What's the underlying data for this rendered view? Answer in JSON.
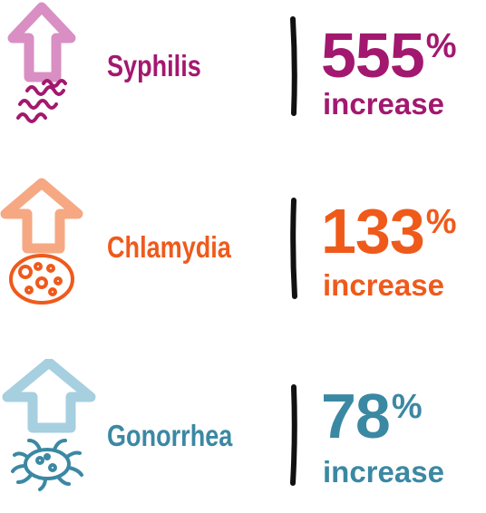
{
  "items": [
    {
      "name": "Syphilis",
      "value": "555",
      "sign": "%",
      "label": "increase",
      "color": "#a3186f",
      "arrow_color": "#d98fc3",
      "icon": "spirochete-bacteria-icon"
    },
    {
      "name": "Chlamydia",
      "value": "133",
      "sign": "%",
      "label": "increase",
      "color": "#ef5a1b",
      "arrow_color": "#f6a883",
      "icon": "chlamydia-cell-icon"
    },
    {
      "name": "Gonorrhea",
      "value": "78",
      "sign": "%",
      "label": "increase",
      "color": "#3b88a3",
      "arrow_color": "#a6cfe0",
      "icon": "gonorrhea-bacterium-icon"
    }
  ]
}
